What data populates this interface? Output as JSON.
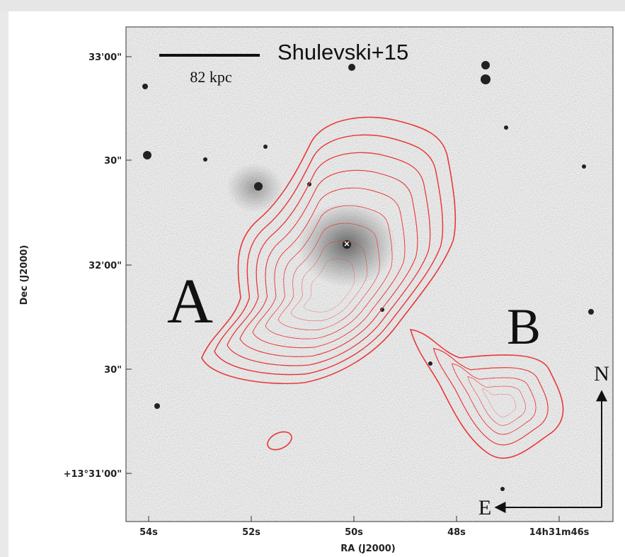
{
  "figure": {
    "annotation": "Shulevski+15",
    "scale_bar_label": "82 kpc",
    "labels": {
      "a": "A",
      "b": "B"
    },
    "compass": {
      "north": "N",
      "east": "E"
    },
    "y_axis": {
      "title": "Dec (J2000)",
      "ticks": [
        "33'00\"",
        "30\"",
        "32'00\"",
        "30\"",
        "+13°31'00\""
      ]
    },
    "x_axis": {
      "title": "RA (J2000)",
      "ticks": [
        "54s",
        "52s",
        "50s",
        "48s",
        "14h31m46s"
      ]
    }
  }
}
